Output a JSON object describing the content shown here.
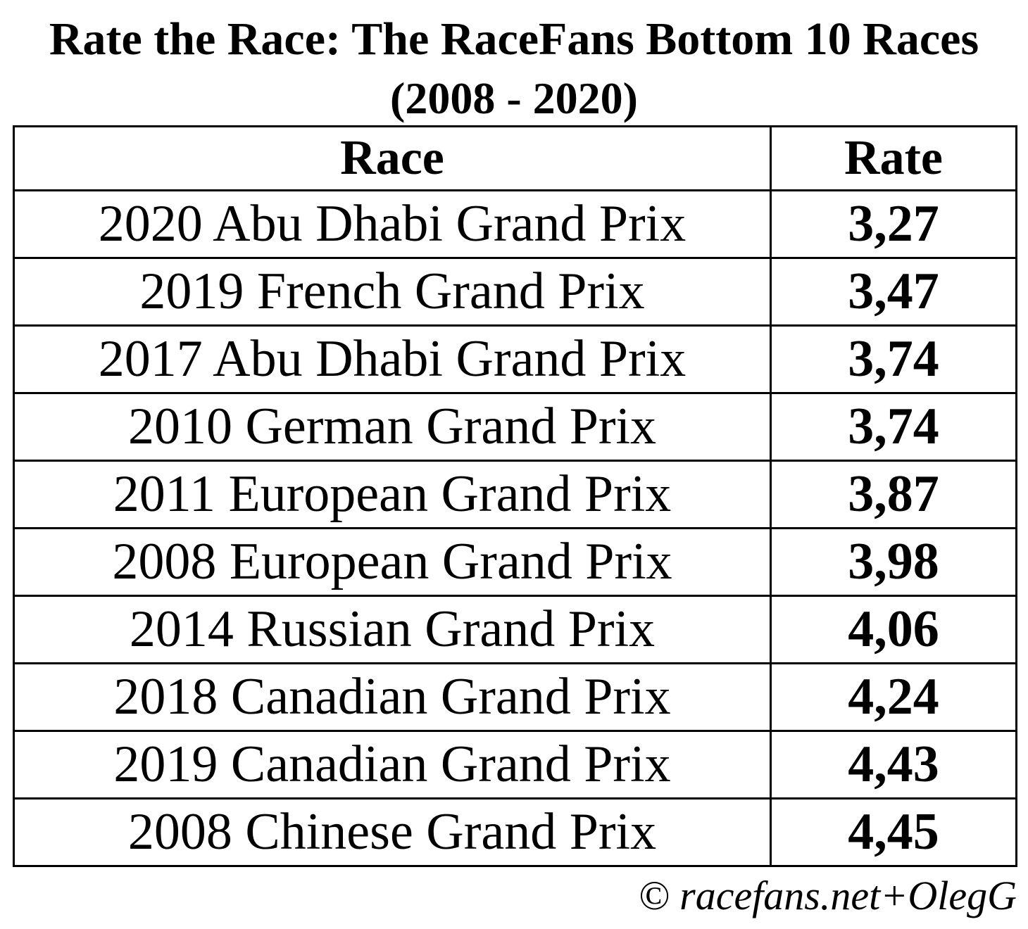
{
  "title": {
    "line1": "Rate the Race: The RaceFans Bottom 10 Races",
    "line2": "(2008 - 2020)"
  },
  "table": {
    "headers": {
      "race": "Race",
      "rate": "Rate"
    },
    "rows": [
      {
        "race": "2020 Abu Dhabi Grand Prix",
        "rate": "3,27"
      },
      {
        "race": "2019 French Grand Prix",
        "rate": "3,47"
      },
      {
        "race": "2017 Abu Dhabi Grand Prix",
        "rate": "3,74"
      },
      {
        "race": "2010 German Grand Prix",
        "rate": "3,74"
      },
      {
        "race": "2011 European Grand Prix",
        "rate": "3,87"
      },
      {
        "race": "2008 European Grand Prix",
        "rate": "3,98"
      },
      {
        "race": "2014 Russian Grand Prix",
        "rate": "4,06"
      },
      {
        "race": "2018 Canadian Grand Prix",
        "rate": "4,24"
      },
      {
        "race": "2019 Canadian Grand Prix",
        "rate": "4,43"
      },
      {
        "race": "2008 Chinese Grand Prix",
        "rate": "4,45"
      }
    ]
  },
  "footer": {
    "credit": "© racefans.net+OlegG"
  },
  "colors": {
    "text": "#000000",
    "background": "#ffffff",
    "border": "#000000"
  },
  "chart_data": {
    "type": "table",
    "title": "Rate the Race: The RaceFans Bottom 10 Races (2008 - 2020)",
    "columns": [
      "Race",
      "Rate"
    ],
    "categories": [
      "2020 Abu Dhabi Grand Prix",
      "2019 French Grand Prix",
      "2017 Abu Dhabi Grand Prix",
      "2010 German Grand Prix",
      "2011 European Grand Prix",
      "2008 European Grand Prix",
      "2014 Russian Grand Prix",
      "2018 Canadian Grand Prix",
      "2019 Canadian Grand Prix",
      "2008 Chinese Grand Prix"
    ],
    "values": [
      3.27,
      3.47,
      3.74,
      3.74,
      3.87,
      3.98,
      4.06,
      4.24,
      4.43,
      4.45
    ],
    "decimal_separator": ",",
    "value_range": [
      3.27,
      4.45
    ],
    "source_credit": "© racefans.net+OlegG"
  }
}
